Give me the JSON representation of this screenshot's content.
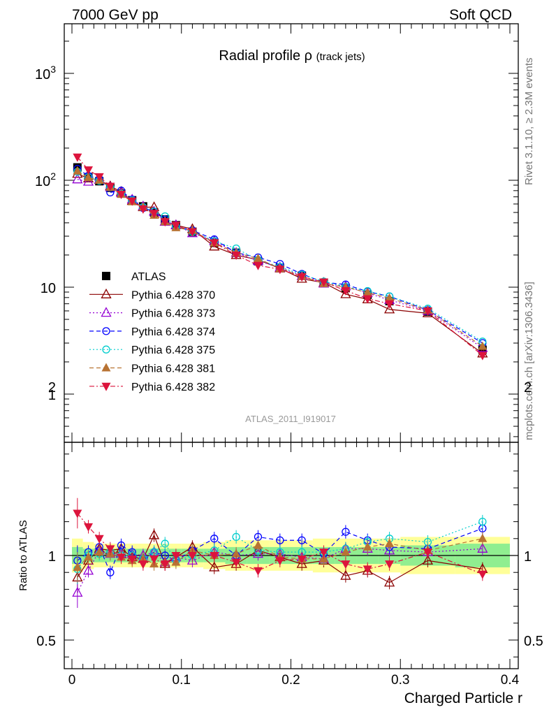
{
  "header": {
    "left": "7000 GeV pp",
    "right": "Soft QCD"
  },
  "side_labels": {
    "rivet": "Rivet 3.1.10, ≥ 2.3M events",
    "mcplots": "mcplots.cern.ch [arXiv:1306.3436]"
  },
  "analysis_id": "ATLAS_2011_I919017",
  "chart_data": [
    {
      "type": "scatter",
      "title": "Radial profile ρ",
      "subtitle": "(track jets)",
      "ylabel": "",
      "xlabel": "",
      "yscale": "log",
      "xlim": [
        -0.01,
        0.41
      ],
      "ylim": [
        0.3,
        2800
      ],
      "yticks": [
        "1",
        "10",
        "10²",
        "10³"
      ],
      "legend_position": "middle-left",
      "x": [
        0.005,
        0.015,
        0.025,
        0.035,
        0.045,
        0.055,
        0.065,
        0.075,
        0.085,
        0.095,
        0.11,
        0.13,
        0.15,
        0.17,
        0.19,
        0.21,
        0.23,
        0.25,
        0.27,
        0.29,
        0.325,
        0.375
      ],
      "series": [
        {
          "name": "ATLAS",
          "color": "#000000",
          "marker": "square-filled",
          "line": "none",
          "values": [
            132,
            107,
            98,
            85,
            75,
            65,
            57,
            50,
            43,
            38,
            33,
            26,
            21,
            17.5,
            15.2,
            12.8,
            11.0,
            9.8,
            8.5,
            7.4,
            5.9,
            2.6
          ]
        },
        {
          "name": "Pythia 6.428 370",
          "color": "#8b0000",
          "marker": "triangle-up-open",
          "line": "solid",
          "values": [
            115,
            104,
            101,
            88,
            78,
            64,
            56,
            56,
            41,
            38,
            35,
            24,
            20,
            18,
            15,
            12,
            11,
            8.6,
            7.7,
            6.2,
            5.7,
            2.4
          ]
        },
        {
          "name": "Pythia 6.428 373",
          "color": "#9400d3",
          "marker": "triangle-up-open",
          "line": "dotted",
          "values": [
            102,
            97,
            101,
            86,
            76,
            66,
            57,
            51,
            41,
            38,
            32,
            27,
            21,
            17.6,
            15.3,
            12.7,
            10.8,
            10.2,
            8.8,
            7.6,
            6.0,
            2.7
          ]
        },
        {
          "name": "Pythia 6.428 374",
          "color": "#0000ff",
          "marker": "circle-open",
          "line": "dashed",
          "values": [
            128,
            110,
            103,
            77,
            80,
            66,
            55,
            51,
            43,
            37,
            34,
            28,
            21,
            19,
            16.5,
            13.3,
            11.1,
            10.6,
            9.1,
            8.2,
            6.1,
            3.0
          ]
        },
        {
          "name": "Pythia 6.428 375",
          "color": "#00cdcd",
          "marker": "circle-open",
          "line": "dotted",
          "values": [
            120,
            107,
            99,
            86,
            75,
            65,
            56,
            51,
            46,
            37,
            33,
            27,
            23,
            18,
            15.5,
            13.1,
            11.3,
            10.1,
            9.2,
            8.2,
            6.3,
            3.1
          ]
        },
        {
          "name": "Pythia 6.428 381",
          "color": "#b87333",
          "marker": "triangle-up-filled",
          "line": "dashed",
          "values": [
            122,
            106,
            100,
            86,
            74,
            63,
            56,
            47,
            41,
            36,
            34,
            26,
            21,
            18.5,
            15,
            12.6,
            10.8,
            10.0,
            8.9,
            7.9,
            6.1,
            2.8
          ]
        },
        {
          "name": "Pythia 6.428 382",
          "color": "#dc143c",
          "marker": "triangle-down-filled",
          "line": "dashdot",
          "values": [
            165,
            125,
            108,
            88,
            74,
            64,
            54,
            49,
            41,
            38,
            33,
            26,
            20,
            16,
            14.7,
            12.5,
            11.2,
            9.3,
            7.8,
            7.0,
            6.0,
            2.3
          ]
        }
      ]
    },
    {
      "type": "scatter",
      "title": "",
      "xlabel": "Charged Particle r",
      "ylabel": "Ratio to ATLAS",
      "xlim": [
        -0.01,
        0.41
      ],
      "ylim": [
        0.35,
        2.35
      ],
      "yticks": [
        "0.5",
        "1",
        "2"
      ],
      "xticks": [
        "0",
        "0.1",
        "0.2",
        "0.3",
        "0.4"
      ],
      "bands": {
        "inner_color": "#90ee90",
        "outer_color": "#ffff99",
        "x_edges": [
          0.0,
          0.01,
          0.02,
          0.03,
          0.04,
          0.05,
          0.06,
          0.07,
          0.08,
          0.09,
          0.1,
          0.12,
          0.14,
          0.16,
          0.18,
          0.2,
          0.22,
          0.24,
          0.26,
          0.28,
          0.3,
          0.35,
          0.4
        ],
        "inner": [
          0.05,
          0.04,
          0.04,
          0.04,
          0.04,
          0.04,
          0.04,
          0.04,
          0.04,
          0.04,
          0.04,
          0.04,
          0.05,
          0.05,
          0.05,
          0.05,
          0.05,
          0.05,
          0.05,
          0.05,
          0.06,
          0.07
        ],
        "outer": [
          0.1,
          0.08,
          0.07,
          0.07,
          0.07,
          0.07,
          0.07,
          0.07,
          0.07,
          0.07,
          0.07,
          0.08,
          0.09,
          0.09,
          0.09,
          0.09,
          0.1,
          0.1,
          0.1,
          0.1,
          0.11,
          0.11
        ]
      },
      "series": [
        {
          "name": "Pythia 6.428 370",
          "values": [
            0.87,
            0.97,
            1.04,
            1.03,
            1.04,
            0.99,
            0.98,
            1.12,
            0.95,
            0.99,
            1.05,
            0.93,
            0.95,
            1.03,
            0.99,
            0.95,
            0.97,
            0.88,
            0.91,
            0.84,
            0.97,
            0.92
          ]
        },
        {
          "name": "Pythia 6.428 373",
          "values": [
            0.78,
            0.91,
            1.03,
            1.01,
            1.01,
            1.01,
            1.0,
            1.02,
            0.96,
            0.99,
            0.97,
            1.02,
            1.0,
            1.01,
            1.01,
            0.99,
            0.98,
            1.04,
            1.04,
            1.03,
            1.02,
            1.04
          ]
        },
        {
          "name": "Pythia 6.428 374",
          "values": [
            0.97,
            1.02,
            1.05,
            0.9,
            1.06,
            1.02,
            0.97,
            1.02,
            1.0,
            0.97,
            1.03,
            1.1,
            1.0,
            1.11,
            1.09,
            1.09,
            1.01,
            1.14,
            1.09,
            1.05,
            1.04,
            1.16
          ]
        },
        {
          "name": "Pythia 6.428 375",
          "values": [
            0.92,
            1.0,
            1.01,
            1.02,
            1.0,
            1.0,
            0.98,
            1.02,
            1.07,
            0.97,
            1.0,
            1.03,
            1.11,
            1.03,
            1.02,
            1.02,
            1.02,
            1.04,
            1.08,
            1.1,
            1.08,
            1.2
          ]
        },
        {
          "name": "Pythia 6.428 381",
          "values": [
            0.93,
            0.99,
            1.02,
            1.01,
            0.99,
            0.97,
            0.98,
            0.95,
            0.96,
            0.96,
            1.03,
            1.0,
            1.01,
            1.06,
            0.99,
            0.98,
            0.98,
            1.02,
            1.05,
            1.07,
            1.03,
            1.1
          ]
        },
        {
          "name": "Pythia 6.428 382",
          "values": [
            1.25,
            1.17,
            1.1,
            1.04,
            0.99,
            0.98,
            0.95,
            0.98,
            0.95,
            1.0,
            1.0,
            1.0,
            0.96,
            0.91,
            0.97,
            0.98,
            1.02,
            0.95,
            0.92,
            0.95,
            1.02,
            0.89
          ]
        }
      ]
    }
  ]
}
